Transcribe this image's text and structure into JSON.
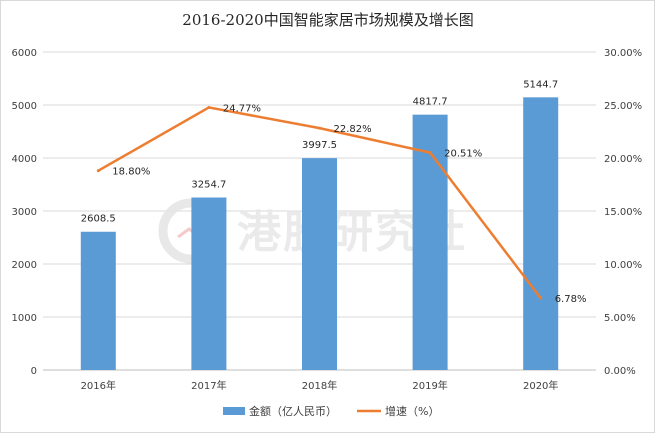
{
  "chart_data": {
    "type": "bar",
    "title": "2016-2020中国智能家居市场规模及增长图",
    "categories": [
      "2016年",
      "2017年",
      "2018年",
      "2019年",
      "2020年"
    ],
    "series": [
      {
        "name": "金额（亿人民币）",
        "type": "bar",
        "axis": "left",
        "color": "#5b9bd5",
        "values": [
          2608.5,
          3254.7,
          3997.5,
          4817.7,
          5144.7
        ],
        "labels": [
          "2608.5",
          "3254.7",
          "3997.5",
          "4817.7",
          "5144.7"
        ]
      },
      {
        "name": "增速（%）",
        "type": "line",
        "axis": "right",
        "color": "#ed7d31",
        "values": [
          18.8,
          24.77,
          22.82,
          20.51,
          6.78
        ],
        "labels": [
          "18.80%",
          "24.77%",
          "22.82%",
          "20.51%",
          "6.78%"
        ]
      }
    ],
    "y_left": {
      "min": 0,
      "max": 6000,
      "ticks": [
        "0",
        "1000",
        "2000",
        "3000",
        "4000",
        "5000",
        "6000"
      ]
    },
    "y_right": {
      "min": 0,
      "max": 30,
      "ticks": [
        "0.00%",
        "5.00%",
        "10.00%",
        "15.00%",
        "20.00%",
        "25.00%",
        "30.00%"
      ]
    },
    "grid": true,
    "legend_position": "bottom",
    "watermark": "港股研究社"
  }
}
